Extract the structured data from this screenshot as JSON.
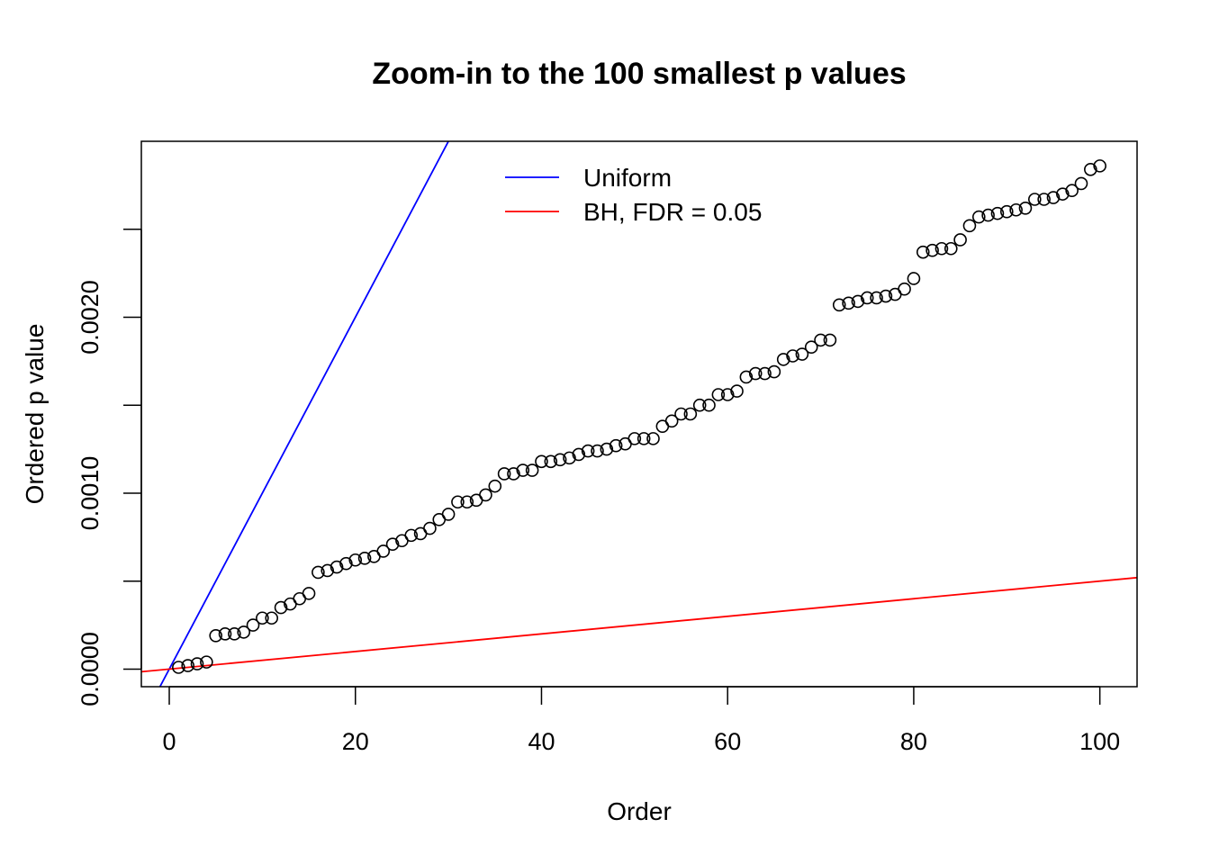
{
  "chart_data": {
    "type": "scatter",
    "title": "Zoom-in to the 100 smallest p values",
    "xlabel": "Order",
    "ylabel": "Ordered p value",
    "xlim": [
      -3,
      104
    ],
    "ylim": [
      -0.0001,
      0.003
    ],
    "x_ticks": [
      {
        "value": 0,
        "label": "0"
      },
      {
        "value": 20,
        "label": "20"
      },
      {
        "value": 40,
        "label": "40"
      },
      {
        "value": 60,
        "label": "60"
      },
      {
        "value": 80,
        "label": "80"
      },
      {
        "value": 100,
        "label": "100"
      }
    ],
    "y_ticks": [
      {
        "value": 0,
        "label": "0.0000"
      },
      {
        "value": 0.0005,
        "label": ""
      },
      {
        "value": 0.001,
        "label": "0.0010"
      },
      {
        "value": 0.0015,
        "label": ""
      },
      {
        "value": 0.002,
        "label": "0.0020"
      },
      {
        "value": 0.0025,
        "label": ""
      }
    ],
    "series": [
      {
        "marker": "open-circle",
        "color": "#000000",
        "x": [
          1,
          2,
          3,
          4,
          5,
          6,
          7,
          8,
          9,
          10,
          11,
          12,
          13,
          14,
          15,
          16,
          17,
          18,
          19,
          20,
          21,
          22,
          23,
          24,
          25,
          26,
          27,
          28,
          29,
          30,
          31,
          32,
          33,
          34,
          35,
          36,
          37,
          38,
          39,
          40,
          41,
          42,
          43,
          44,
          45,
          46,
          47,
          48,
          49,
          50,
          51,
          52,
          53,
          54,
          55,
          56,
          57,
          58,
          59,
          60,
          61,
          62,
          63,
          64,
          65,
          66,
          67,
          68,
          69,
          70,
          71,
          72,
          73,
          74,
          75,
          76,
          77,
          78,
          79,
          80,
          81,
          82,
          83,
          84,
          85,
          86,
          87,
          88,
          89,
          90,
          91,
          92,
          93,
          94,
          95,
          96,
          97,
          98,
          99,
          100
        ],
        "y": [
          1e-05,
          2e-05,
          3e-05,
          4e-05,
          0.00019,
          0.0002,
          0.0002,
          0.00021,
          0.00025,
          0.00029,
          0.00029,
          0.00035,
          0.00037,
          0.0004,
          0.00043,
          0.00055,
          0.00056,
          0.00058,
          0.0006,
          0.00062,
          0.00063,
          0.00064,
          0.00067,
          0.00071,
          0.00073,
          0.00076,
          0.00077,
          0.0008,
          0.00085,
          0.00088,
          0.00095,
          0.00095,
          0.00096,
          0.00099,
          0.00104,
          0.00111,
          0.00111,
          0.00113,
          0.00113,
          0.00118,
          0.00118,
          0.00119,
          0.0012,
          0.00122,
          0.00124,
          0.00124,
          0.00125,
          0.00127,
          0.00128,
          0.00131,
          0.00131,
          0.00131,
          0.00138,
          0.00141,
          0.00145,
          0.00145,
          0.0015,
          0.0015,
          0.00156,
          0.00156,
          0.00158,
          0.00166,
          0.00168,
          0.00168,
          0.00169,
          0.00176,
          0.00178,
          0.00179,
          0.00183,
          0.00187,
          0.00187,
          0.00207,
          0.00208,
          0.00209,
          0.00211,
          0.00211,
          0.00212,
          0.00213,
          0.00216,
          0.00222,
          0.00237,
          0.00238,
          0.00239,
          0.00239,
          0.00244,
          0.00252,
          0.00257,
          0.00258,
          0.00259,
          0.0026,
          0.00261,
          0.00262,
          0.00267,
          0.00267,
          0.00268,
          0.0027,
          0.00272,
          0.00276,
          0.00284,
          0.00286
        ]
      }
    ],
    "lines": [
      {
        "name": "Uniform",
        "color": "#0000ff",
        "intercept": 0,
        "slope": 0.0001
      },
      {
        "name": "BH, FDR = 0.05",
        "color": "#ff0000",
        "intercept": 0,
        "slope": 5e-06
      }
    ],
    "legend": {
      "position": "top-center",
      "border": false
    },
    "grid": false
  }
}
